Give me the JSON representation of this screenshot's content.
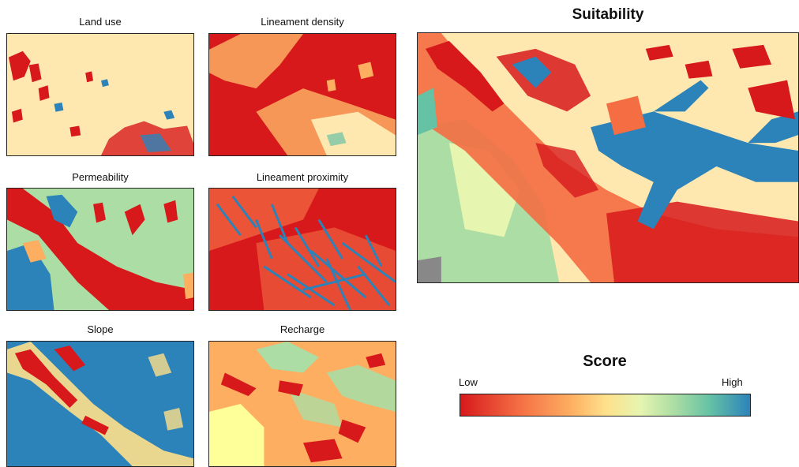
{
  "panels": {
    "land_use": {
      "title": "Land use"
    },
    "lineament_density": {
      "title": "Lineament density"
    },
    "permeability": {
      "title": "Permeability"
    },
    "lineament_proximity": {
      "title": "Lineament proximity"
    },
    "slope": {
      "title": "Slope"
    },
    "recharge": {
      "title": "Recharge"
    }
  },
  "suitability": {
    "title": "Suitability"
  },
  "legend": {
    "title": "Score",
    "low_label": "Low",
    "high_label": "High",
    "colors": [
      "#d7191c",
      "#f46d43",
      "#fdae61",
      "#fee08b",
      "#abdda4",
      "#66c2a5",
      "#2b83ba"
    ]
  }
}
